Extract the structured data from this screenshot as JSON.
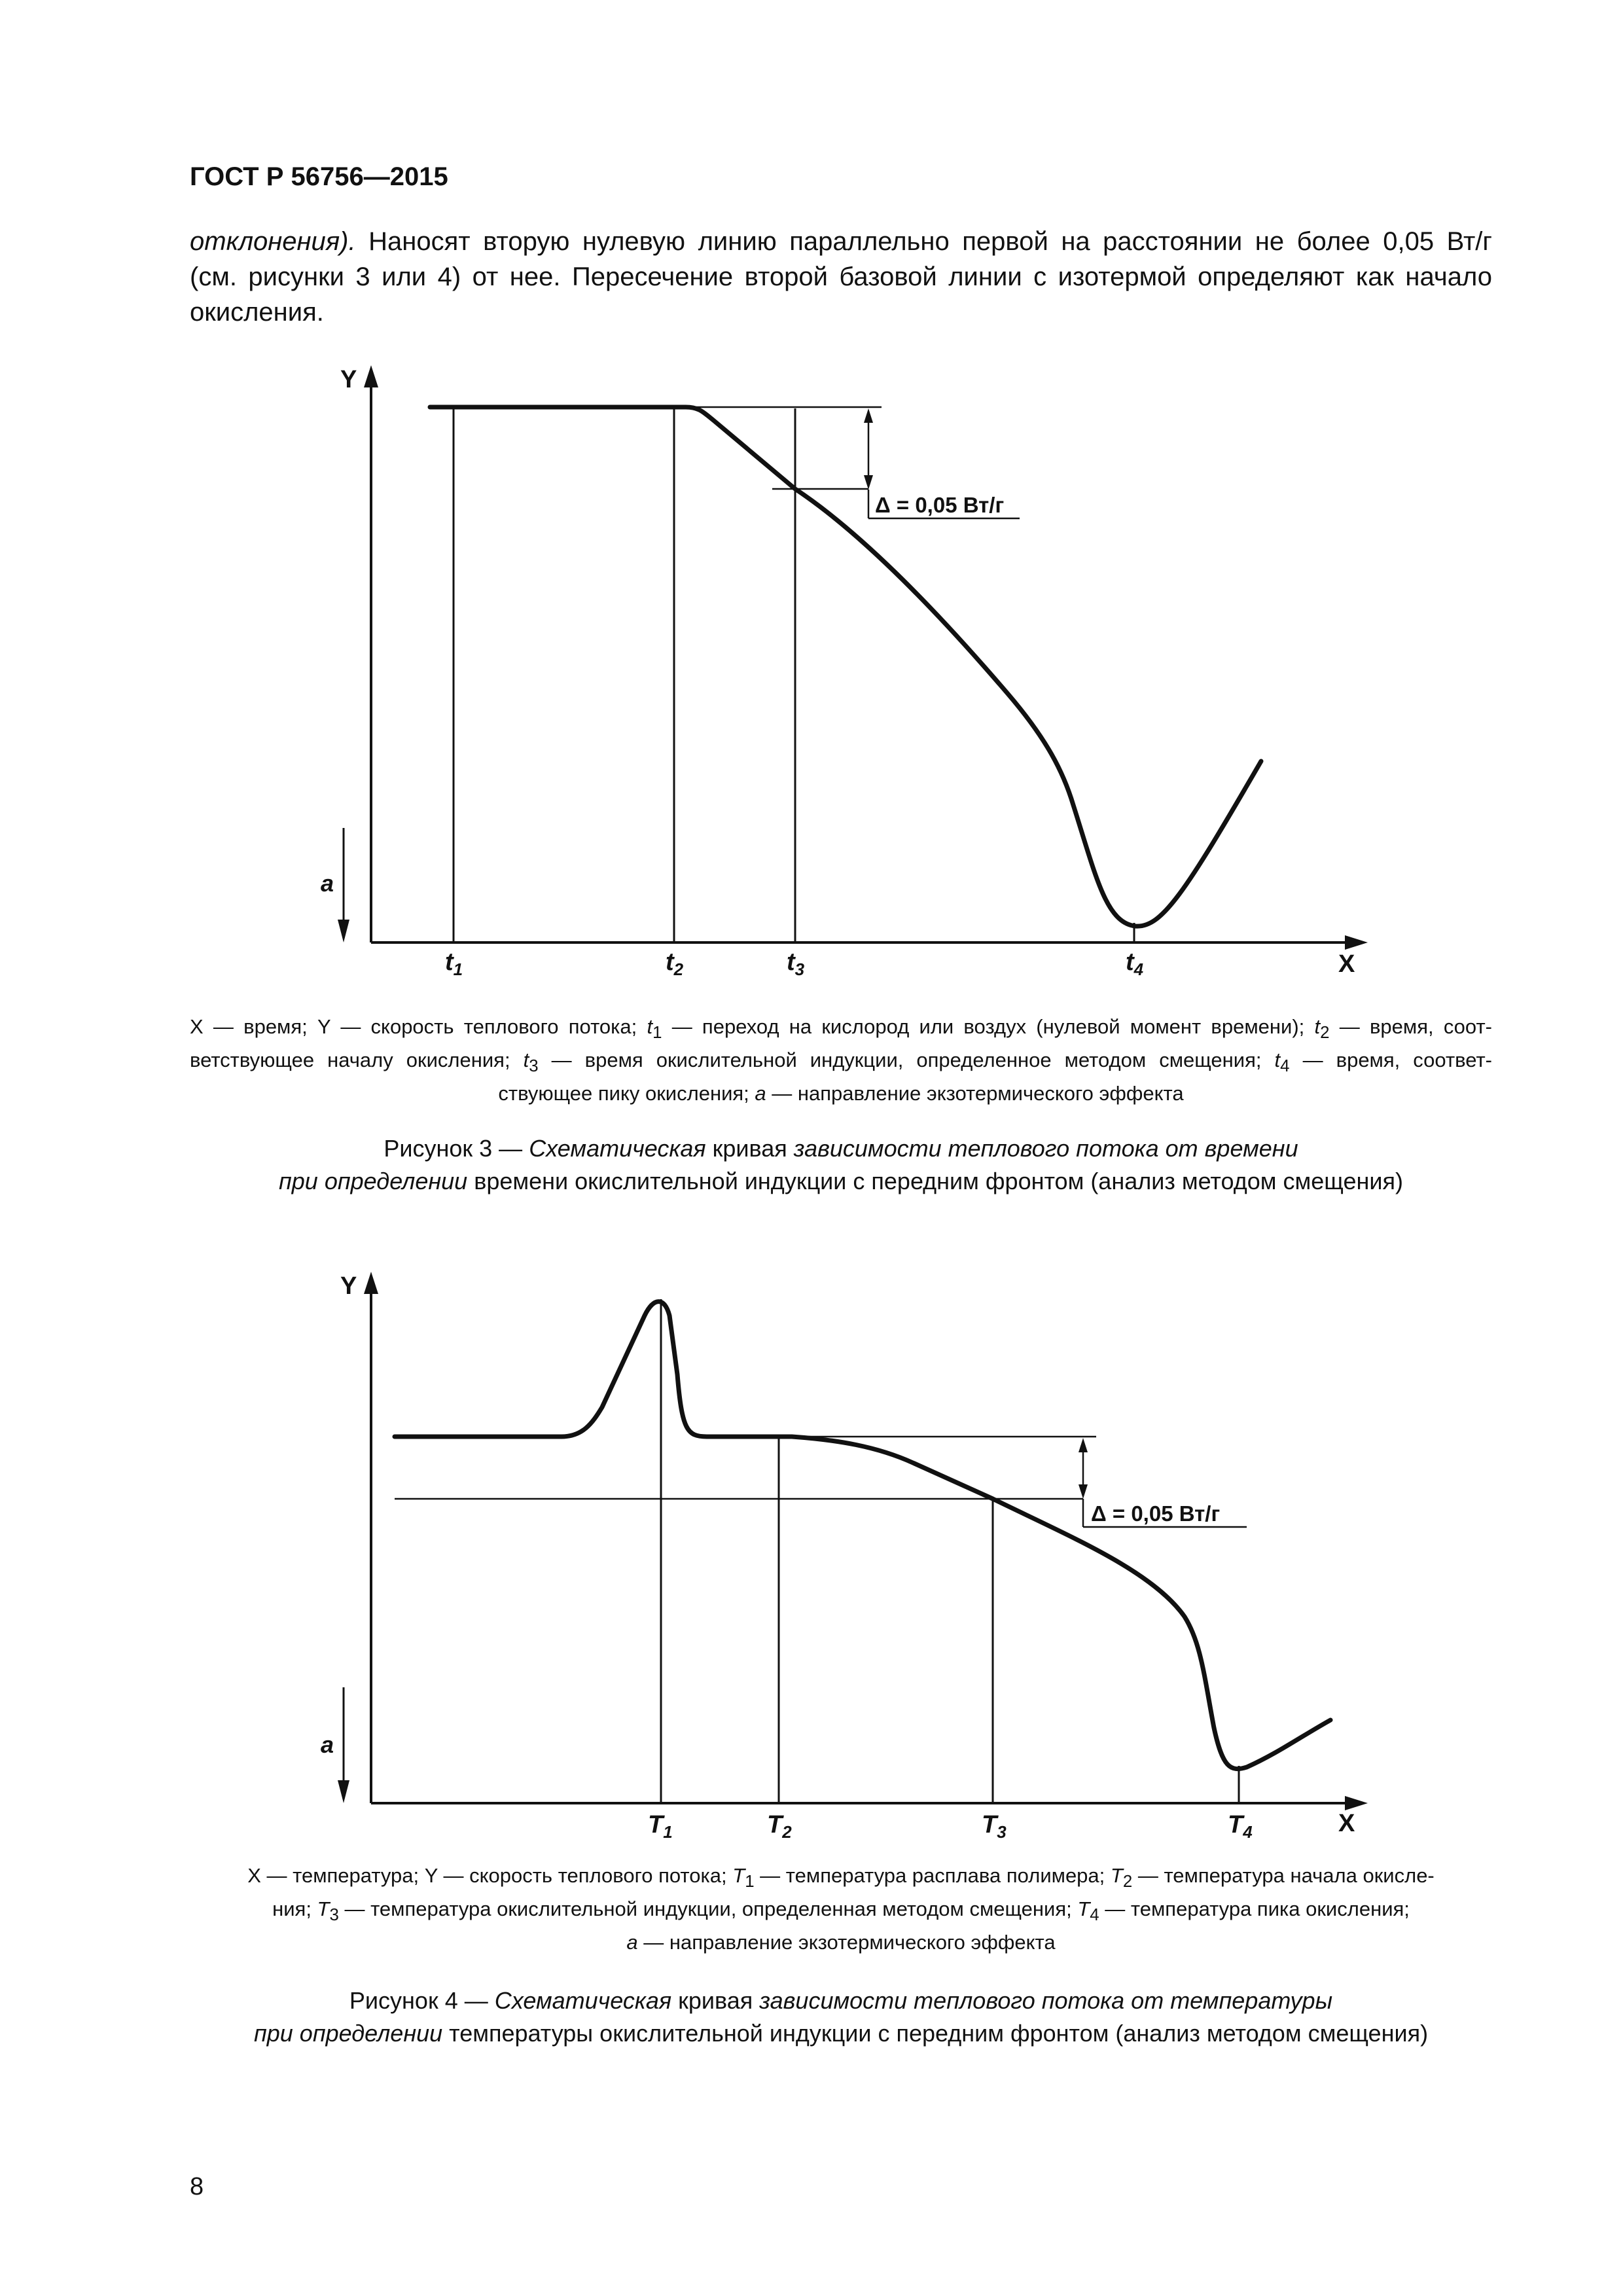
{
  "header": {
    "title": "ГОСТ Р 56756—2015"
  },
  "paragraph": {
    "line1_italic": "отклонения).",
    "line1_rest": " Наносят вторую нулевую линию параллельно первой на расстоянии не более 0,05 Вт/г",
    "line2": "(см. рисунки 3 или 4) от нее. Пересечение второй базовой линии с изотермой определяют как начало",
    "line3": "окисления."
  },
  "figure3": {
    "y_axis_label": "Y",
    "x_axis_label": "X",
    "direction_label": "a",
    "delta_label": "Δ = 0,05 Вт/г",
    "ticks": [
      {
        "base": "t",
        "sub": "1"
      },
      {
        "base": "t",
        "sub": "2"
      },
      {
        "base": "t",
        "sub": "3"
      },
      {
        "base": "t",
        "sub": "4"
      }
    ],
    "legend": {
      "l1_a": "X — время; Y — скорость теплового потока; ",
      "t1": "t",
      "t1_sub": "1",
      "l1_b": " — переход на кислород или воздух (нулевой момент времени); ",
      "t2": "t",
      "t2_sub": "2",
      "l1_c": " — время, соот-",
      "l2_a": "ветствующее  началу окисления; ",
      "t3": "t",
      "t3_sub": "3",
      "l2_b": " — время окислительной индукции, определенное методом смещения; ",
      "t4": "t",
      "t4_sub": "4",
      "l2_c": " — время, соответ-",
      "l3_a": "ствующее пику окисления; ",
      "a": "а",
      "l3_b": " — направление экзотермического эффекта"
    },
    "caption": {
      "prefix": "Рисунок  3 — ",
      "p1": "Схематическая",
      "p2": " кривая ",
      "p3": "зависимости теплового потока от  времени",
      "p4": "при определении",
      "p5": " времени окислительной индукции с передним фронтом (анализ методом смещения)"
    }
  },
  "figure4": {
    "y_axis_label": "Y",
    "x_axis_label": "X",
    "direction_label": "a",
    "delta_label": "Δ = 0,05 Вт/г",
    "ticks": [
      {
        "base": "T",
        "sub": "1"
      },
      {
        "base": "T",
        "sub": "2"
      },
      {
        "base": "T",
        "sub": "3"
      },
      {
        "base": "T",
        "sub": "4"
      }
    ],
    "legend": {
      "l1_a": "X — температура; Y — скорость теплового потока; ",
      "t1": "T",
      "t1_sub": "1",
      "l1_b": " — температура расплава полимера; ",
      "t2": "T",
      "t2_sub": "2",
      "l1_c": " — температура начала окисле-",
      "l2_a": "ния; ",
      "t3": "T",
      "t3_sub": "3",
      "l2_b": " — температура окислительной индукции, определенная методом смещения; ",
      "t4": "T",
      "t4_sub": "4",
      "l2_c": " — температура пика окисления;",
      "a": "а",
      "l3_b": " — направление экзотермического эффекта"
    },
    "caption": {
      "prefix": "Рисунок  4 — ",
      "p1": "Схематическая",
      "p2": " кривая ",
      "p3": "зависимости теплового потока от температуры",
      "p4": "при определении",
      "p5": " температуры окислительной индукции с передним фронтом (анализ методом смещения)"
    }
  },
  "page_number": "8"
}
